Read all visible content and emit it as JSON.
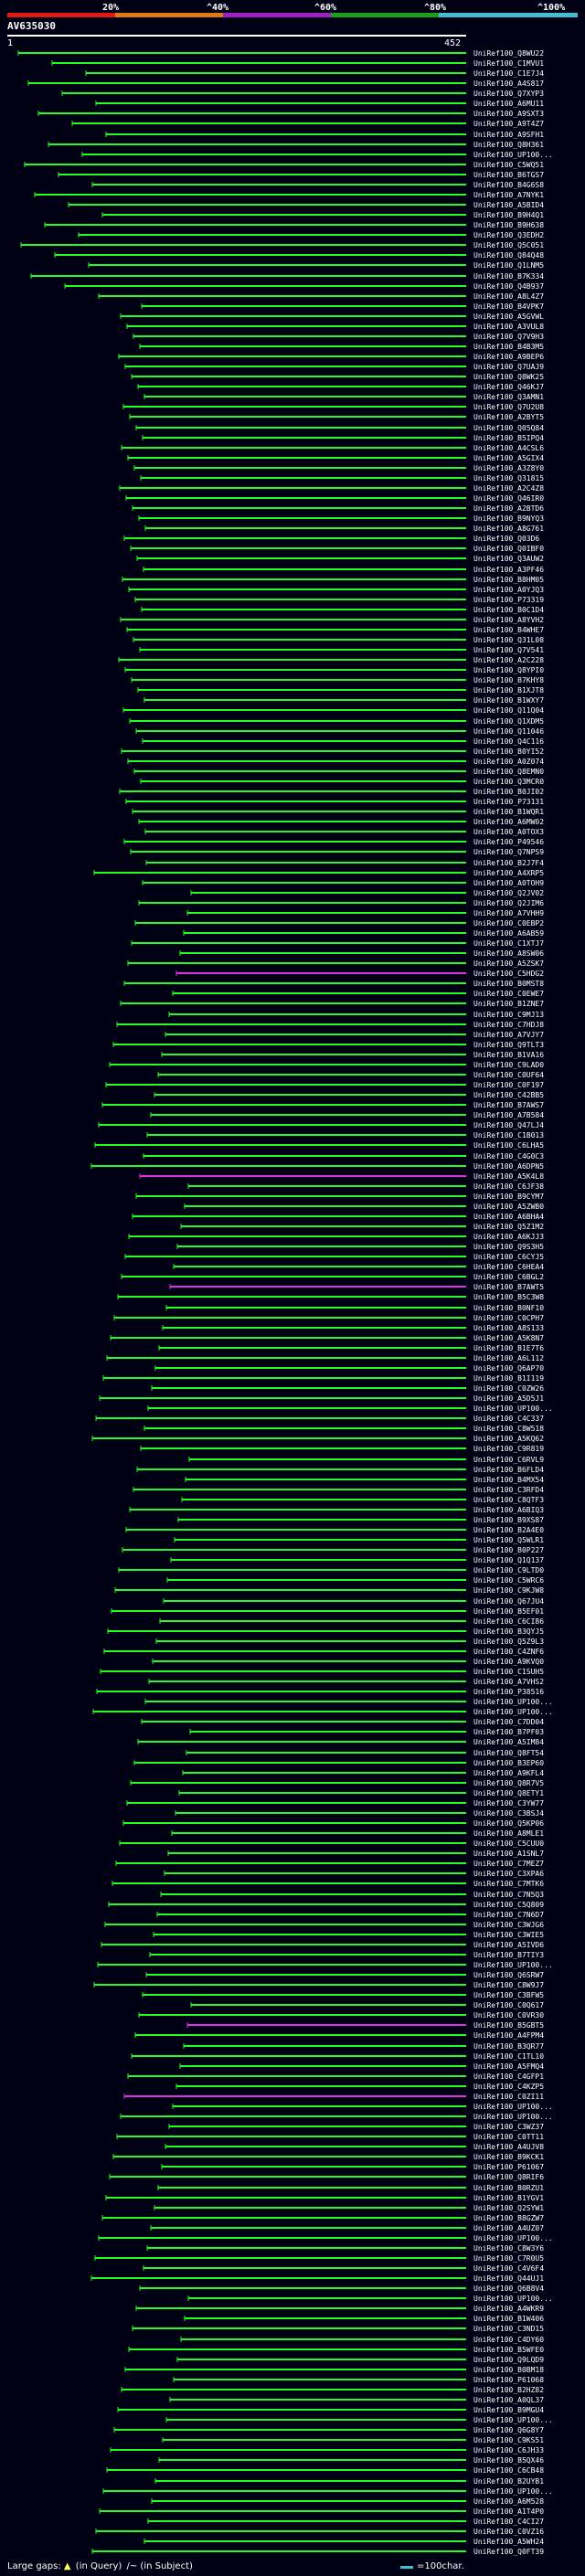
{
  "query": {
    "id": "AV635030",
    "start_label": "1",
    "end_label": "452"
  },
  "scale": {
    "ticks": [
      "20%",
      "^40%",
      "^60%",
      "^80%",
      "^100%"
    ],
    "colors": [
      "#e01818",
      "#e07818",
      "#a020c0",
      "#18a018",
      "#40c0d0"
    ]
  },
  "chart_data": {
    "type": "alignment-coverage",
    "title": "AV635030",
    "x_range": [
      1,
      452
    ],
    "query_color": "#40c0d0",
    "default_hit_color": "#20ff20",
    "alt_hit_color": "#e030e0",
    "hits": [
      "UniRef100_Q8WU22",
      "UniRef100_C1MVU1",
      "UniRef100_C1E7J4",
      "UniRef100_A4S817",
      "UniRef100_Q7XYP3",
      "UniRef100_A6MU11",
      "UniRef100_A9SXT3",
      "UniRef100_A9T4Z7",
      "UniRef100_A9SFH1",
      "UniRef100_Q8H361",
      "UniRef100_UP100...",
      "UniRef100_C5WQ51",
      "UniRef100_B6TGS7",
      "UniRef100_B4G6S8",
      "UniRef100_A7NYK1",
      "UniRef100_A5BID4",
      "UniRef100_B9H4Q1",
      "UniRef100_B9H638",
      "UniRef100_Q3EDH2",
      "UniRef100_Q5C051",
      "UniRef100_Q84Q48",
      "UniRef100_Q1LNM5",
      "UniRef100_B7K334",
      "UniRef100_Q4B937",
      "UniRef100_A8L4Z7",
      "UniRef100_B4VPK7",
      "UniRef100_A5GVWL",
      "UniRef100_A3VUL8",
      "UniRef100_Q7V9H3",
      "UniRef100_B4B3M5",
      "UniRef100_A9BEP6",
      "UniRef100_Q7UAJ9",
      "UniRef100_Q8WK25",
      "UniRef100_Q46KJ7",
      "UniRef100_Q3AMN1",
      "UniRef100_Q7U2U8",
      "UniRef100_A2BYT5",
      "UniRef100_Q05Q84",
      "UniRef100_B5IPQ4",
      "UniRef100_A4CSL6",
      "UniRef100_A5GIX4",
      "UniRef100_A3Z8Y0",
      "UniRef100_Q31815",
      "UniRef100_A2C4Z8",
      "UniRef100_Q46IR0",
      "UniRef100_A2BTD6",
      "UniRef100_B9NYQ3",
      "UniRef100_A8G761",
      "UniRef100_Q03D6",
      "UniRef100_Q0IBF0",
      "UniRef100_Q3AUW2",
      "UniRef100_A3PF46",
      "UniRef100_B8HM05",
      "UniRef100_A0YJQ3",
      "UniRef100_P73319",
      "UniRef100_B0C1D4",
      "UniRef100_A8YVH2",
      "UniRef100_B4WHE7",
      "UniRef100_Q31L08",
      "UniRef100_Q7V541",
      "UniRef100_A2C228",
      "UniRef100_Q8YPI0",
      "UniRef100_B7KHY8",
      "UniRef100_B1XJT8",
      "UniRef100_B1WXY7",
      "UniRef100_Q11Q04",
      "UniRef100_Q1XDM5",
      "UniRef100_Q11046",
      "UniRef100_Q4C116",
      "UniRef100_B0YI52",
      "UniRef100_A0Z074",
      "UniRef100_Q8EMN0",
      "UniRef100_Q3MCR0",
      "UniRef100_B0JI02",
      "UniRef100_P73131",
      "UniRef100_B1WQR1",
      "UniRef100_A6MW02",
      "UniRef100_A0TOX3",
      "UniRef100_P49546",
      "UniRef100_Q7NPS9",
      "UniRef100_B2J7F4",
      "UniRef100_A4XRP5",
      "UniRef100_A0TOH9",
      "UniRef100_Q2JV02",
      "UniRef100_Q2JIM6",
      "UniRef100_A7VHH9",
      "UniRef100_C0EBP2",
      "UniRef100_A6AB59",
      "UniRef100_C1XTJ7",
      "UniRef100_A8SW06",
      "UniRef100_A5ZSK7",
      "UniRef100_C5HDG2",
      "UniRef100_B0MST8",
      "UniRef100_C0EWE7",
      "UniRef100_B1ZNE7",
      "UniRef100_C9MJ13",
      "UniRef100_C7HDJ8",
      "UniRef100_A7VJY7",
      "UniRef100_Q9TLT3",
      "UniRef100_B1VA16",
      "UniRef100_C9LAD0",
      "UniRef100_C0UF64",
      "UniRef100_C0F197",
      "UniRef100_C42BB5",
      "UniRef100_B7AWS7",
      "UniRef100_A7B584",
      "UniRef100_Q47LJ4",
      "UniRef100_C1B013",
      "UniRef100_C6LHA5",
      "UniRef100_C4G0C3",
      "UniRef100_A6DPN5",
      "UniRef100_A5K4L8",
      "UniRef100_C6JF38",
      "UniRef100_B9CYM7",
      "UniRef100_A5ZWB0",
      "UniRef100_A6BHA4",
      "UniRef100_Q5Z1M2",
      "UniRef100_A6KJJ3",
      "UniRef100_Q9S3H5",
      "UniRef100_C6CYJ5",
      "UniRef100_C6HEA4",
      "UniRef100_C6BGL2",
      "UniRef100_B7AWT5",
      "UniRef100_B5C3W8",
      "UniRef100_B0NF10",
      "UniRef100_C0CPH7",
      "UniRef100_A8S133",
      "UniRef100_A5K8N7",
      "UniRef100_B1E7T6",
      "UniRef100_A6L112",
      "UniRef100_Q6AP70",
      "UniRef100_B1I119",
      "UniRef100_C0ZW26",
      "UniRef100_A5D5J1",
      "UniRef100_UP100...",
      "UniRef100_C4C337",
      "UniRef100_C8W518",
      "UniRef100_A5KQ62",
      "UniRef100_C9R819",
      "UniRef100_C6RVL9",
      "UniRef100_B6FLD4",
      "UniRef100_B4MX54",
      "UniRef100_C3RFD4",
      "UniRef100_C8QTF3",
      "UniRef100_A6BIQ3",
      "UniRef100_B9XS87",
      "UniRef100_B2A4E0",
      "UniRef100_Q5WLR1",
      "UniRef100_B0P227",
      "UniRef100_Q1Q137",
      "UniRef100_C9LTD0",
      "UniRef100_C5WRC6",
      "UniRef100_C9KJW8",
      "UniRef100_Q67JU4",
      "UniRef100_B5EF01",
      "UniRef100_C6CI86",
      "UniRef100_B3QYJ5",
      "UniRef100_Q5Z9L3",
      "UniRef100_C4ZNF6",
      "UniRef100_A9KVQ0",
      "UniRef100_C1SUH5",
      "UniRef100_A7VHS2",
      "UniRef100_P38516",
      "UniRef100_UP100...",
      "UniRef100_UP100...",
      "UniRef100_C7DD04",
      "UniRef100_B7PF03",
      "UniRef100_A5IM84",
      "UniRef100_Q8FT54",
      "UniRef100_B3EP60",
      "UniRef100_A9KFL4",
      "UniRef100_Q8R7V5",
      "UniRef100_Q8ETY1",
      "UniRef100_C3YW77",
      "UniRef100_C3BSJ4",
      "UniRef100_Q5KP06",
      "UniRef100_A8MLE1",
      "UniRef100_C5CUU0",
      "UniRef100_A1SNL7",
      "UniRef100_C7MEZ7",
      "UniRef100_C3XPA6",
      "UniRef100_C7MTK6",
      "UniRef100_C7N5Q3",
      "UniRef100_C5Q809",
      "UniRef100_C7N6D7",
      "UniRef100_C3WJG6",
      "UniRef100_C3WIE5",
      "UniRef100_A5IVD6",
      "UniRef100_B7TIY3",
      "UniRef100_UP100...",
      "UniRef100_Q6SRW7",
      "UniRef100_C8W9J7",
      "UniRef100_C3BFW5",
      "UniRef100_C0Q617",
      "UniRef100_C0VR30",
      "UniRef100_B5GBT5",
      "UniRef100_A4FPM4",
      "UniRef100_B3QR77",
      "UniRef100_C1TL10",
      "UniRef100_A5FMQ4",
      "UniRef100_C4GFP1",
      "UniRef100_C4KZP5",
      "UniRef100_C0ZI11",
      "UniRef100_UP100...",
      "UniRef100_UP100...",
      "UniRef100_C3WZ37",
      "UniRef100_C0TT11",
      "UniRef100_A4UJV8",
      "UniRef100_B9KCK1",
      "UniRef100_P61067",
      "UniRef100_Q8RIF6",
      "UniRef100_B0RZU1",
      "UniRef100_B1YGV1",
      "UniRef100_Q2SYW1",
      "UniRef100_B8GZW7",
      "UniRef100_A4UZ07",
      "UniRef100_UP100...",
      "UniRef100_C8W3Y6",
      "UniRef100_C7R0U5",
      "UniRef100_C4V6F4",
      "UniRef100_Q44UJ1",
      "UniRef100_Q6B8V4",
      "UniRef100_UP100...",
      "UniRef100_A4WKR9",
      "UniRef100_B1W406",
      "UniRef100_C3ND15",
      "UniRef100_C4DY60",
      "UniRef100_B5WFE0",
      "UniRef100_Q9LQD9",
      "UniRef100_B0BM18",
      "UniRef100_P61068",
      "UniRef100_B2HZ82",
      "UniRef100_A0QL37",
      "UniRef100_B9MGU4",
      "UniRef100_UP100...",
      "UniRef100_Q6G8Y7",
      "UniRef100_C9KS51",
      "UniRef100_C6JH33",
      "UniRef100_B5QX46",
      "UniRef100_C6CB48",
      "UniRef100_B2UYB1",
      "UniRef100_UP100...",
      "UniRef100_A6M528",
      "UniRef100_A1T4P0",
      "UniRef100_C4CI27",
      "UniRef100_C0VZ16",
      "UniRef100_A5WH24",
      "UniRef100_Q0FT39"
    ],
    "footer": {
      "gaps_label": "Large gaps:",
      "gaps_query_symbol": "▲",
      "gaps_query_text": "(in Query)",
      "gaps_subject_text": "/~ (in Subject)",
      "legend_text": "=100char."
    }
  }
}
